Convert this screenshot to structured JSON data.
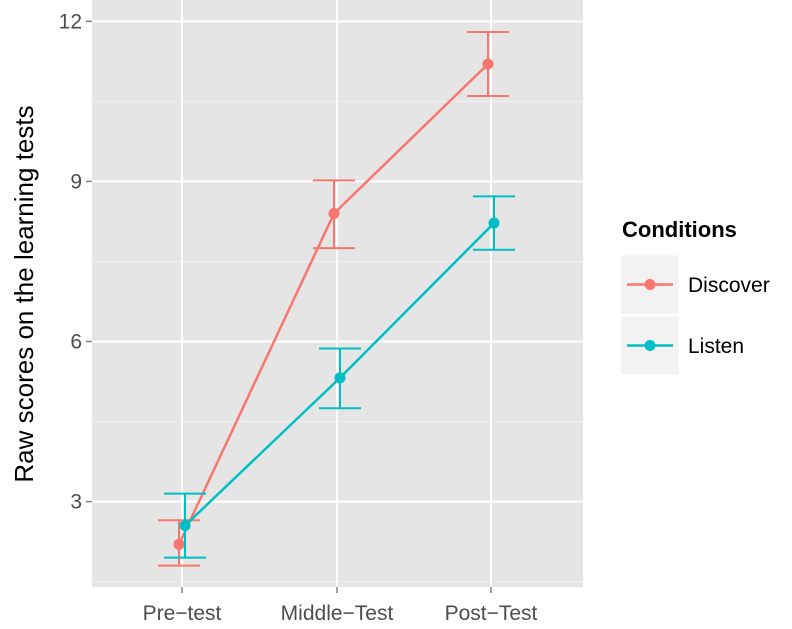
{
  "chart_data": {
    "type": "line",
    "title": "",
    "xlabel": "",
    "ylabel": "Raw scores on the learning tests",
    "categories": [
      "Pre−test",
      "Middle−Test",
      "Post−Test"
    ],
    "ylim": [
      1.4,
      12.4
    ],
    "yticks": [
      3,
      6,
      9,
      12
    ],
    "ytick_labels": [
      "3",
      "6",
      "9",
      "12"
    ],
    "grid": true,
    "legend": {
      "title": "Conditions",
      "placement": "right"
    },
    "series": [
      {
        "name": "Discover",
        "color": "#F8766D",
        "values": [
          2.2,
          8.4,
          11.2
        ],
        "error_low": [
          1.8,
          7.75,
          10.6
        ],
        "error_high": [
          2.65,
          9.02,
          11.8
        ]
      },
      {
        "name": "Listen",
        "color": "#00BFC4",
        "values": [
          2.55,
          5.32,
          8.22
        ],
        "error_low": [
          1.95,
          4.75,
          7.72
        ],
        "error_high": [
          3.15,
          5.87,
          8.72
        ]
      }
    ]
  }
}
